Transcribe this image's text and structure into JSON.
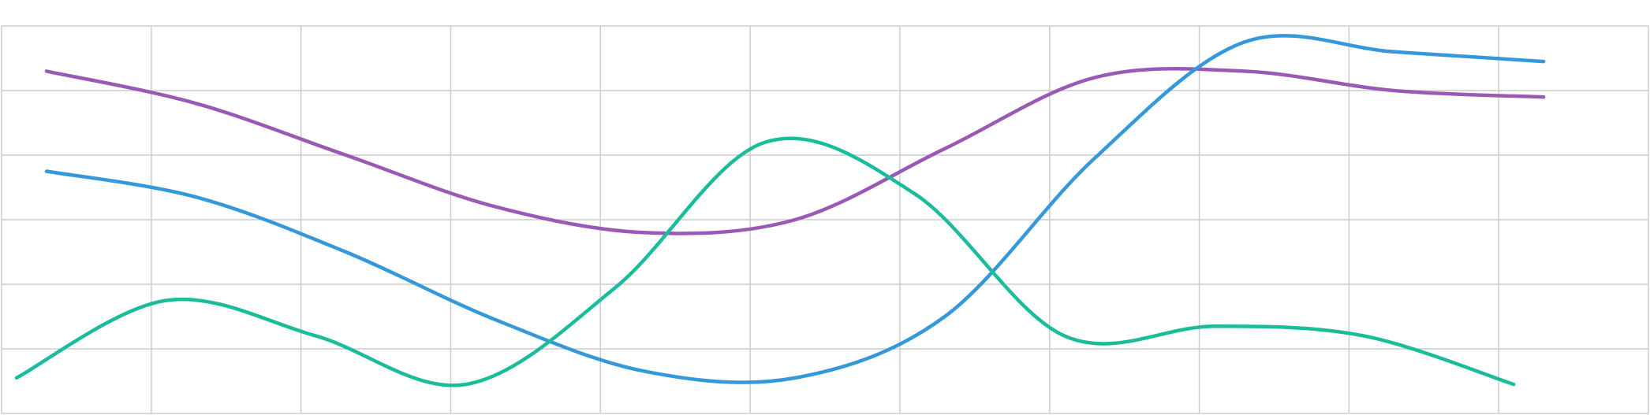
{
  "chart_data": {
    "type": "line",
    "title": "",
    "xlabel": "",
    "ylabel": "",
    "x": [
      0,
      1,
      2,
      3,
      4,
      5,
      6,
      7,
      8,
      9,
      10,
      11
    ],
    "xlim": [
      0,
      11
    ],
    "ylim": [
      0,
      6
    ],
    "grid": true,
    "legend": "none",
    "colors": {
      "grid": "#cccccc",
      "background": "#ffffff"
    },
    "series": [
      {
        "color": "#9b59b6",
        "x": [
          0.3,
          1.3,
          2.3,
          3.3,
          4.3,
          5.3,
          6.3,
          7.3,
          8.3,
          9.3,
          10.3
        ],
        "values": [
          5.3,
          4.8,
          4.0,
          3.2,
          2.8,
          3.0,
          4.1,
          5.2,
          5.3,
          5.0,
          4.9
        ]
      },
      {
        "color": "#3498db",
        "x": [
          0.3,
          1.3,
          2.3,
          3.3,
          4.3,
          5.3,
          6.3,
          7.3,
          8.3,
          9.3,
          10.3
        ],
        "values": [
          3.75,
          3.35,
          2.5,
          1.45,
          0.65,
          0.55,
          1.5,
          3.95,
          5.75,
          5.6,
          5.45
        ]
      },
      {
        "color": "#1abc9c",
        "x": [
          0.1,
          1.1,
          2.1,
          3.1,
          4.1,
          5.1,
          6.1,
          7.1,
          8.1,
          9.1,
          10.1
        ],
        "values": [
          0.55,
          1.75,
          1.2,
          0.45,
          1.95,
          4.2,
          3.4,
          1.2,
          1.35,
          1.2,
          0.45
        ]
      }
    ]
  }
}
